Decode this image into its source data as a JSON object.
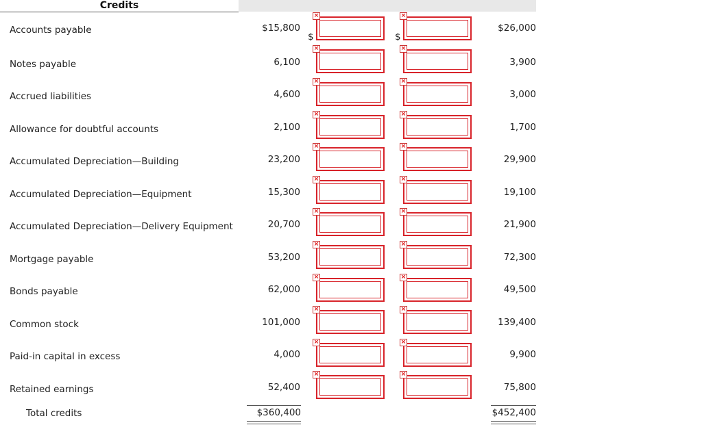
{
  "header": {
    "title": "Credits"
  },
  "rows": [
    {
      "label": "Accounts payable",
      "v1": "$15,800",
      "v4": "$26,000"
    },
    {
      "label": "Notes payable",
      "v1": "6,100",
      "v4": "3,900"
    },
    {
      "label": "Accrued liabilities",
      "v1": "4,600",
      "v4": "3,000"
    },
    {
      "label": "Allowance for doubtful accounts",
      "v1": "2,100",
      "v4": "1,700"
    },
    {
      "label": "Accumulated Depreciation—Building",
      "v1": "23,200",
      "v4": "29,900"
    },
    {
      "label": "Accumulated Depreciation—Equipment",
      "v1": "15,300",
      "v4": "19,100"
    },
    {
      "label": "Accumulated Depreciation—Delivery Equipment",
      "v1": "20,700",
      "v4": "21,900"
    },
    {
      "label": "Mortgage payable",
      "v1": "53,200",
      "v4": "72,300"
    },
    {
      "label": "Bonds payable",
      "v1": "62,000",
      "v4": "49,500"
    },
    {
      "label": "Common stock",
      "v1": "101,000",
      "v4": "139,400"
    },
    {
      "label": "Paid-in capital in excess",
      "v1": "4,000",
      "v4": "9,900"
    },
    {
      "label": "Retained earnings",
      "v1": "52,400",
      "v4": "75,800"
    }
  ],
  "dollar_sign": "$",
  "total": {
    "label": "Total credits",
    "v1": "$360,400",
    "v4": "$452,400"
  },
  "icons": {
    "broken_image": "broken-image-icon"
  },
  "colors": {
    "input_border": "#d8232a",
    "header_band": "#e8e8e8"
  }
}
